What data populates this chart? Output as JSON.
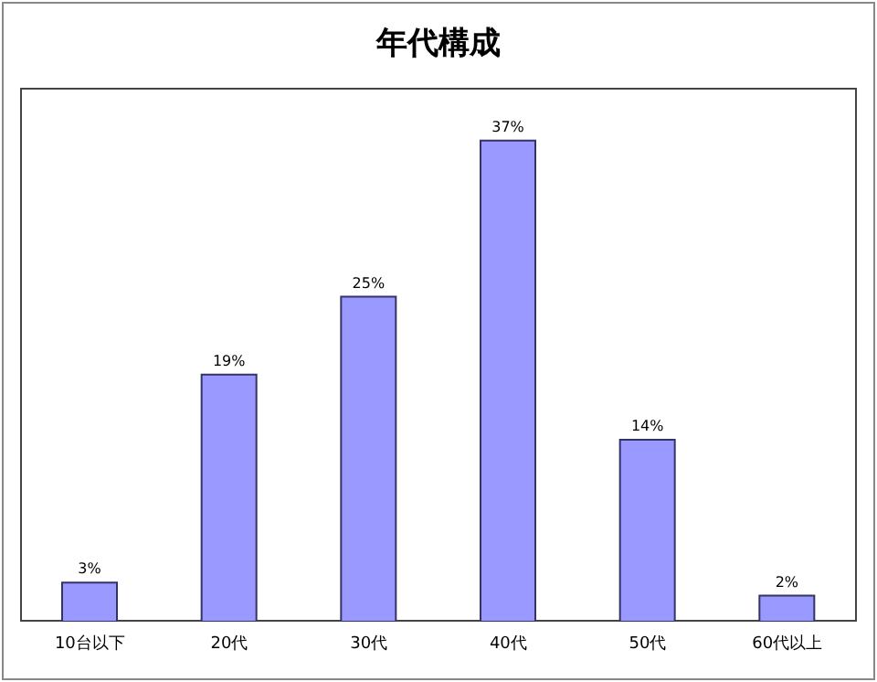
{
  "chart_data": {
    "type": "bar",
    "title": "年代構成",
    "categories": [
      "10台以下",
      "20代",
      "30代",
      "40代",
      "50代",
      "60代以上"
    ],
    "values": [
      3,
      19,
      25,
      37,
      14,
      2
    ],
    "value_labels": [
      "3%",
      "19%",
      "25%",
      "37%",
      "14%",
      "2%"
    ],
    "color": "#9999ff"
  }
}
